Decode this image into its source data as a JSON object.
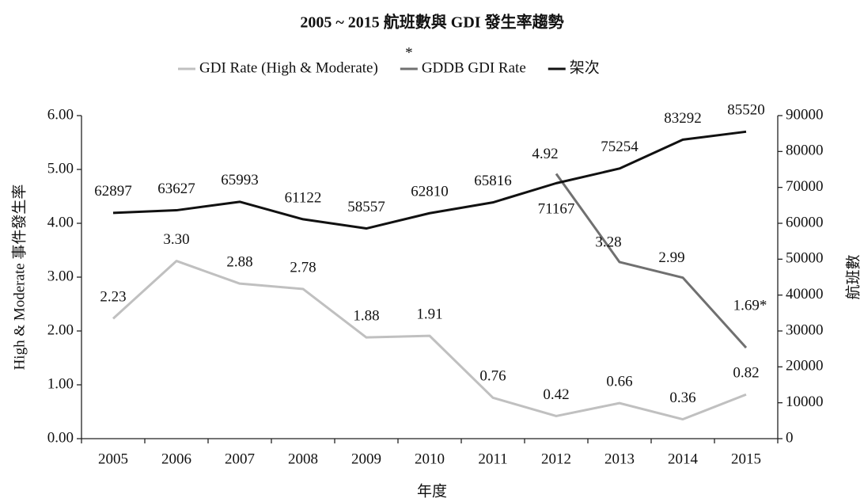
{
  "chart_data": {
    "type": "line",
    "title": "2005 ~ 2015 航班數與 GDI 發生率趨勢",
    "annotations": [
      "*"
    ],
    "x_label": "年度",
    "y_label": "High & Moderate 事件發生率",
    "y2_label": "航班數",
    "categories": [
      "2005",
      "2006",
      "2007",
      "2008",
      "2009",
      "2010",
      "2011",
      "2012",
      "2013",
      "2014",
      "2015"
    ],
    "series": [
      {
        "name": "GDI Rate (High & Moderate)",
        "color": "#c0c0c0",
        "values": [
          2.23,
          3.3,
          2.88,
          2.78,
          1.88,
          1.91,
          0.76,
          0.42,
          0.66,
          0.36,
          0.82
        ],
        "value_labels": [
          "2.23",
          "3.30",
          "2.88",
          "2.78",
          "1.88",
          "1.91",
          "0.76",
          "0.42",
          "0.66",
          "0.36",
          "0.82"
        ]
      },
      {
        "name": "GDDB GDI Rate",
        "color": "#707070",
        "values": [
          null,
          null,
          null,
          null,
          null,
          null,
          null,
          4.92,
          3.28,
          2.99,
          1.69
        ],
        "value_labels": [
          null,
          null,
          null,
          null,
          null,
          null,
          null,
          "4.92",
          "3.28",
          "2.99",
          "1.69*"
        ]
      },
      {
        "name": "架次",
        "color": "#111111",
        "axis": "y2",
        "values": [
          62897,
          63627,
          65993,
          61122,
          58557,
          62810,
          65816,
          71167,
          75254,
          83292,
          85520
        ]
      }
    ],
    "ylim": [
      0,
      6
    ],
    "yticks": [
      {
        "value": 0,
        "label": "0.00"
      },
      {
        "value": 1,
        "label": "1.00"
      },
      {
        "value": 2,
        "label": "2.00"
      },
      {
        "value": 3,
        "label": "3.00"
      },
      {
        "value": 4,
        "label": "4.00"
      },
      {
        "value": 5,
        "label": "5.00"
      },
      {
        "value": 6,
        "label": "6.00"
      }
    ],
    "y2lim": [
      0,
      90000
    ],
    "y2ticks": [
      0,
      10000,
      20000,
      30000,
      40000,
      50000,
      60000,
      70000,
      80000,
      90000
    ],
    "grid": false
  }
}
